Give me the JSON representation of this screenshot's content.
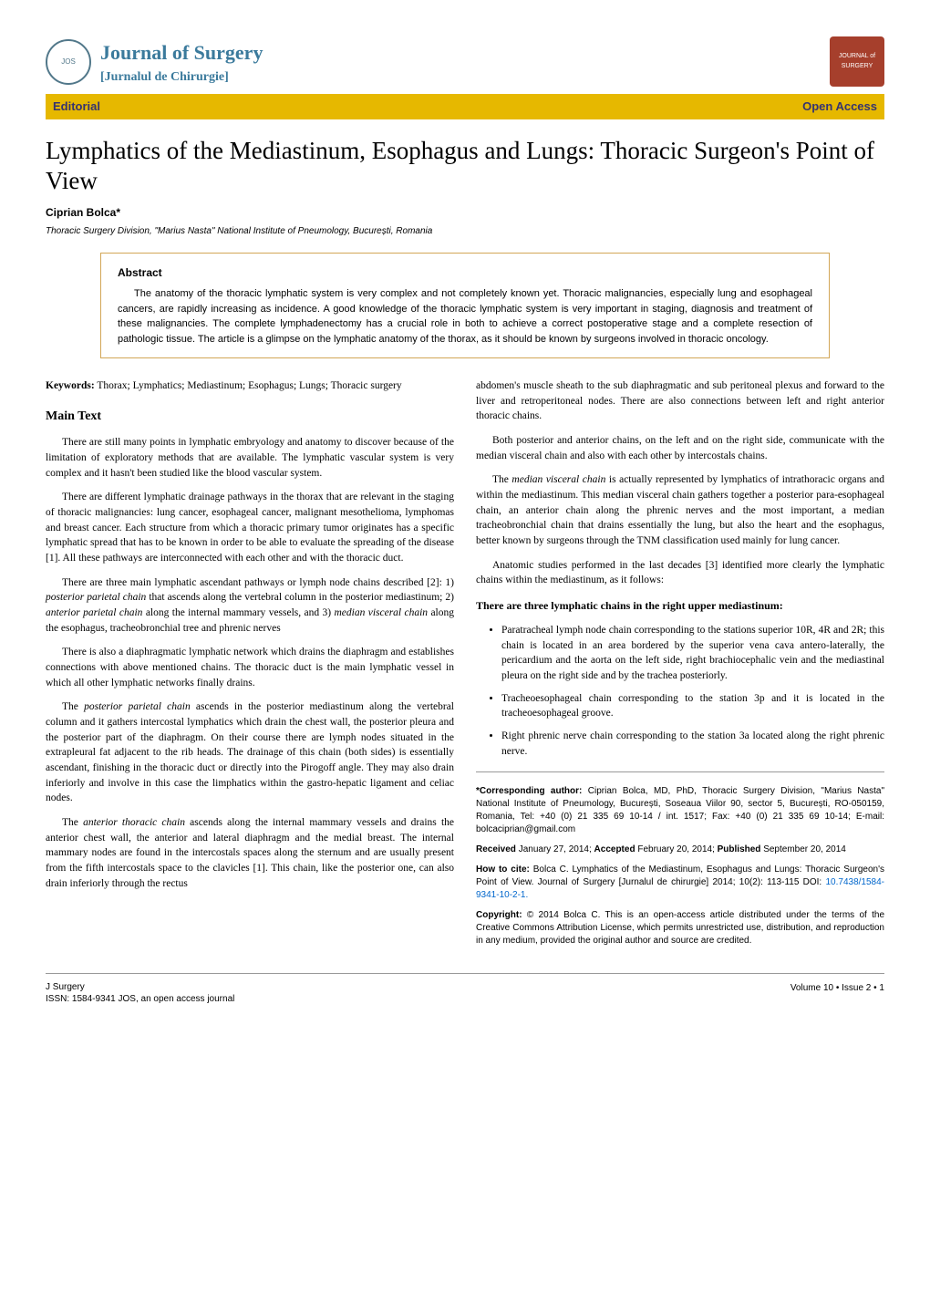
{
  "journal": {
    "title": "Journal of Surgery",
    "subtitle": "[Jurnalul de Chirurgie]"
  },
  "banner": {
    "left": "Editorial",
    "right": "Open Access"
  },
  "article": {
    "title": "Lymphatics of the Mediastinum, Esophagus and Lungs: Thoracic Surgeon's Point of View",
    "author": "Ciprian Bolca*",
    "affiliation": "Thoracic Surgery Division, \"Marius Nasta\" National Institute of Pneumology, București, Romania"
  },
  "abstract": {
    "label": "Abstract",
    "text": "The anatomy of the thoracic lymphatic system is very complex and not completely known yet. Thoracic malignancies, especially lung and esophageal cancers, are rapidly increasing as incidence. A good knowledge of the thoracic lymphatic system is very important in staging, diagnosis and treatment of these malignancies. The complete lymphadenectomy has a crucial role in both to achieve a correct postoperative stage and a complete resection of pathologic tissue. The article is a glimpse on the lymphatic anatomy of the thorax, as it should be known by surgeons involved in thoracic oncology."
  },
  "keywords": {
    "label": "Keywords:",
    "text": "Thorax; Lymphatics; Mediastinum; Esophagus; Lungs; Thoracic surgery"
  },
  "main": {
    "heading": "Main Text",
    "left_paras": [
      "There are still many points in lymphatic embryology and anatomy to discover because of the limitation of exploratory methods that are available. The lymphatic vascular system is very complex and it hasn't been studied like the blood vascular system.",
      "There are different lymphatic drainage pathways in the thorax that are relevant in the staging of thoracic malignancies: lung cancer, esophageal cancer, malignant mesothelioma, lymphomas and breast cancer. Each structure from which a thoracic primary tumor originates has a specific lymphatic spread that has to be known in order to be able to evaluate the spreading of the disease [1]. All these pathways are interconnected with each other and with the thoracic duct.",
      "There are three main lymphatic ascendant pathways or lymph node chains described [2]: 1) posterior parietal chain that ascends along the vertebral column in the posterior mediastinum; 2) anterior parietal chain along the internal mammary vessels, and 3) median visceral chain along the esophagus, tracheobronchial tree and phrenic nerves",
      "There is also a diaphragmatic lymphatic network which drains the diaphragm and establishes connections with above mentioned chains. The thoracic duct is the main lymphatic vessel in which all other lymphatic networks finally drains.",
      "The posterior parietal chain ascends in the posterior mediastinum along the vertebral column and it gathers intercostal lymphatics which drain the chest wall, the posterior pleura and the posterior part of the diaphragm. On their course there are lymph nodes situated in the extrapleural fat adjacent to the rib heads. The drainage of this chain (both sides) is essentially ascendant, finishing in the thoracic duct or directly into the Pirogoff angle. They may also drain inferiorly and involve in this case the limphatics within the gastro-hepatic ligament and celiac nodes.",
      "The anterior thoracic chain ascends along the internal mammary vessels and drains the anterior chest wall, the anterior and lateral diaphragm and the medial breast. The internal mammary nodes are found in the intercostals spaces along the sternum and are usually present from the fifth intercostals space to the clavicles [1]. This chain, like the posterior one, can also drain inferiorly through the rectus"
    ],
    "right_paras_top": [
      "abdomen's muscle sheath to the sub diaphragmatic and sub peritoneal plexus and forward to the liver and retroperitoneal nodes. There are also connections between left and right anterior thoracic chains.",
      "Both posterior and anterior chains, on the left and on the right side, communicate with the median visceral chain and also with each other by intercostals chains.",
      "The median visceral chain is actually represented by lymphatics of intrathoracic organs and within the mediastinum. This median visceral chain gathers together a posterior para-esophageal chain, an anterior chain along the phrenic nerves and the most important, a median tracheobronchial chain that drains essentially the lung, but also the heart and the esophagus, better known by surgeons through the TNM classification used mainly for lung cancer.",
      "Anatomic studies performed in the last decades [3] identified more clearly the lymphatic chains within the mediastinum, as it follows:"
    ],
    "sub_heading": "There are three lymphatic chains in the right upper mediastinum:",
    "bullets": [
      "Paratracheal lymph node chain corresponding to the stations superior 10R, 4R and 2R; this chain is located in an area bordered by the superior vena cava antero-laterally, the pericardium and the aorta on the left side, right brachiocephalic vein and the mediastinal pleura on the right side and by the trachea posteriorly.",
      "Tracheoesophageal chain corresponding to the station 3p and it is located in the tracheoesophageal groove.",
      "Right phrenic nerve chain corresponding to the station 3a located along the right phrenic nerve."
    ]
  },
  "meta": {
    "corresponding_label": "*Corresponding author:",
    "corresponding": "Ciprian Bolca, MD, PhD, Thoracic Surgery Division, \"Marius Nasta\" National Institute of Pneumology, București, Soseaua Viilor 90, sector 5, București, RO-050159, Romania, Tel: +40 (0) 21 335 69 10-14 / int. 1517; Fax: +40 (0) 21 335 69 10-14; E-mail: bolcaciprian@gmail.com",
    "received_label": "Received",
    "received": "January 27, 2014;",
    "accepted_label": "Accepted",
    "accepted": "February 20, 2014;",
    "published_label": "Published",
    "published": "September 20, 2014",
    "cite_label": "How to cite:",
    "cite": "Bolca C. Lymphatics of the Mediastinum, Esophagus and Lungs: Thoracic Surgeon's Point of View. Journal of Surgery [Jurnalul de chirurgie] 2014; 10(2): 113-115 DOI: ",
    "doi": "10.7438/1584-9341-10-2-1.",
    "copyright_label": "Copyright:",
    "copyright": "© 2014 Bolca C. This is an open-access article distributed under the terms of the Creative Commons Attribution License, which permits unrestricted use, distribution, and reproduction in any medium, provided the original author and source are credited."
  },
  "footer": {
    "left1": "J Surgery",
    "left2": "ISSN: 1584-9341 JOS, an open access journal",
    "right": "Volume 10 • Issue 2 • 1"
  }
}
